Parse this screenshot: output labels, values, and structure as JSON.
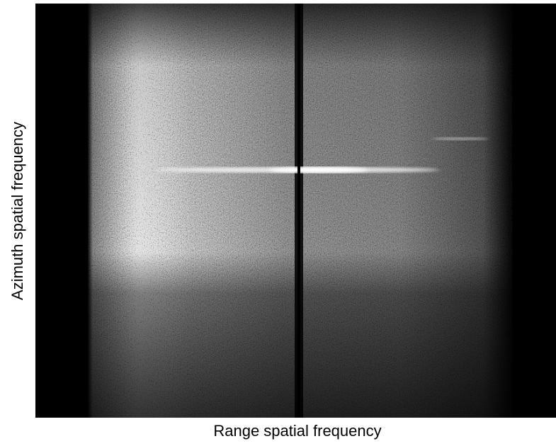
{
  "chart_data": {
    "type": "image",
    "x_label": "Range spatial frequency",
    "y_label": "Azimuth spatial frequency"
  }
}
